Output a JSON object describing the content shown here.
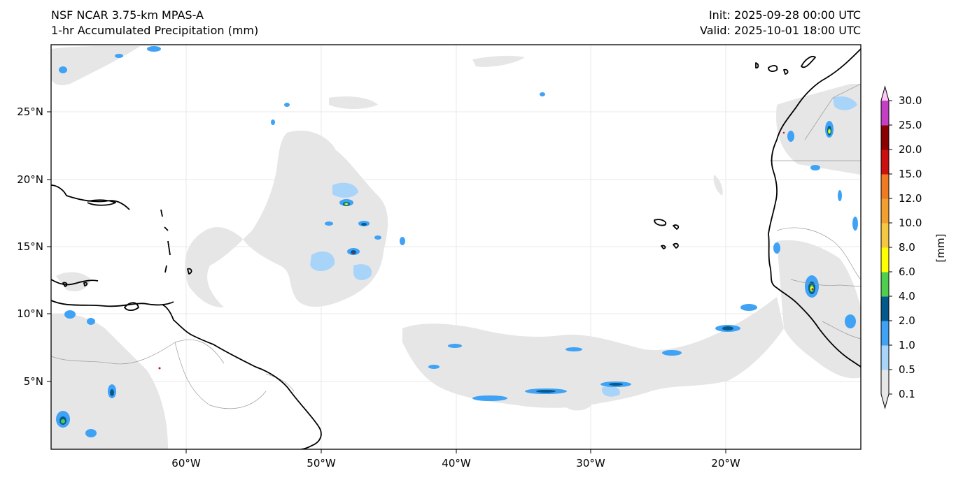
{
  "header": {
    "title_line1": "NSF NCAR 3.75-km MPAS-A",
    "title_line2": "1-hr Accumulated Precipitation (mm)",
    "init_text": "Init: 2025-09-28 00:00 UTC",
    "valid_text": "Valid: 2025-10-01 18:00 UTC"
  },
  "map": {
    "lon_labels": [
      "60°W",
      "50°W",
      "40°W",
      "30°W",
      "20°W"
    ],
    "lat_labels": [
      "25°N",
      "20°N",
      "15°N",
      "10°N",
      "5°N"
    ],
    "lon_range": [
      -70,
      -10
    ],
    "lat_range": [
      0,
      30
    ],
    "lon_ticks": [
      -60,
      -50,
      -40,
      -30,
      -20
    ],
    "lat_ticks": [
      25,
      20,
      15,
      10,
      5
    ]
  },
  "colorbar": {
    "label": "[mm]",
    "levels": [
      "0.1",
      "0.5",
      "1.0",
      "2.0",
      "4.0",
      "6.0",
      "8.0",
      "10.0",
      "12.0",
      "15.0",
      "20.0",
      "25.0",
      "30.0"
    ],
    "colors": [
      "#e6e6e6",
      "#a8d4fa",
      "#3fa2f5",
      "#045a8d",
      "#4fcf4f",
      "#ffff00",
      "#f5c842",
      "#f29f2f",
      "#ef7a22",
      "#cc1010",
      "#8b0000",
      "#c43fc4",
      "#ffc8f5"
    ]
  }
}
